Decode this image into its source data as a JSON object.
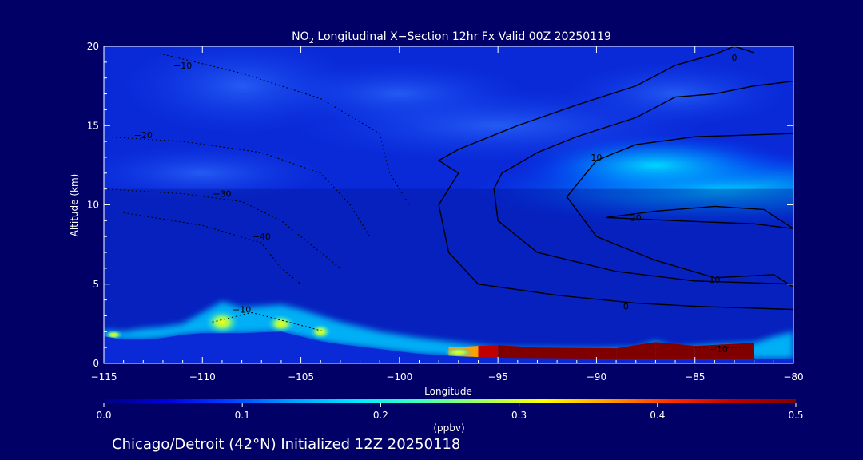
{
  "chart_data": {
    "type": "heatmap",
    "title_prefix": "NO",
    "title_sub": "2",
    "title_suffix": " Longitudinal X−Section 12hr  Fx Valid 00Z 20250119",
    "xlabel": "Longitude",
    "ylabel": "Altitude (km)",
    "xlim": [
      -115,
      -80
    ],
    "ylim": [
      0,
      20
    ],
    "x_ticks": [
      -115,
      -110,
      -105,
      -100,
      -95,
      -90,
      -85,
      -80
    ],
    "x_tick_labels": [
      "−115",
      "−110",
      "−105",
      "−100",
      "−95",
      "−90",
      "−85",
      "−80"
    ],
    "y_ticks": [
      0,
      5,
      10,
      15,
      20
    ],
    "y_tick_labels": [
      "0",
      "5",
      "10",
      "15",
      "20"
    ],
    "colorbar": {
      "min": 0.0,
      "max": 0.5,
      "ticks": [
        0.0,
        0.1,
        0.2,
        0.3,
        0.4,
        0.5
      ],
      "tick_labels": [
        "0.0",
        "0.1",
        "0.2",
        "0.3",
        "0.4",
        "0.5"
      ],
      "label": "(ppbv)",
      "colors": [
        "#000080",
        "#0000dd",
        "#0040ff",
        "#00a0ff",
        "#00e8ff",
        "#40ffc0",
        "#a0ff60",
        "#ffff00",
        "#ffa000",
        "#ff3000",
        "#c00000",
        "#800000"
      ]
    },
    "terrain": [
      [
        -115,
        1.7
      ],
      [
        -114,
        1.5
      ],
      [
        -113,
        1.5
      ],
      [
        -112,
        1.6
      ],
      [
        -111,
        1.8
      ],
      [
        -110,
        1.9
      ],
      [
        -108,
        1.9
      ],
      [
        -106,
        2.0
      ],
      [
        -105,
        1.7
      ],
      [
        -104,
        1.4
      ],
      [
        -103,
        1.2
      ],
      [
        -101,
        0.9
      ],
      [
        -99,
        0.6
      ],
      [
        -97,
        0.45
      ],
      [
        -95,
        0.35
      ],
      [
        -90,
        0.3
      ],
      [
        -85,
        0.3
      ],
      [
        -80,
        0.3
      ]
    ],
    "no2_layer": [
      [
        -115,
        2.1
      ],
      [
        -114,
        2.0
      ],
      [
        -113,
        2.2
      ],
      [
        -112,
        2.3
      ],
      [
        -111,
        2.5
      ],
      [
        -110,
        3.2
      ],
      [
        -109,
        3.9
      ],
      [
        -108,
        3.5
      ],
      [
        -107,
        3.6
      ],
      [
        -106,
        3.7
      ],
      [
        -105,
        3.4
      ],
      [
        -104,
        3.0
      ],
      [
        -103,
        2.6
      ],
      [
        -101,
        2.0
      ],
      [
        -99,
        1.6
      ],
      [
        -97,
        1.3
      ],
      [
        -95,
        1.0
      ],
      [
        -90,
        0.95
      ],
      [
        -88,
        1.0
      ],
      [
        -87,
        1.4
      ],
      [
        -86,
        1.0
      ],
      [
        -84,
        1.2
      ],
      [
        -82,
        1.3
      ],
      [
        -81,
        1.7
      ],
      [
        -80,
        2.0
      ]
    ],
    "no2_core": [
      [
        -97.5,
        0.3,
        1.0,
        0.28
      ],
      [
        -96,
        0.3,
        1.1,
        0.42
      ],
      [
        -95,
        0.3,
        1.15,
        0.5
      ],
      [
        -93,
        0.3,
        1.0,
        0.5
      ],
      [
        -89,
        0.3,
        0.95,
        0.5
      ],
      [
        -87,
        0.3,
        1.35,
        0.5
      ],
      [
        -85,
        0.3,
        1.1,
        0.5
      ],
      [
        -82,
        0.3,
        1.3,
        0.5
      ]
    ],
    "contours": [
      {
        "label": "0",
        "label_pos": [
          -88.5,
          3.6
        ],
        "points": [
          [
            -80,
            3.4
          ],
          [
            -85,
            3.6
          ],
          [
            -88,
            3.8
          ],
          [
            -92,
            4.3
          ],
          [
            -96,
            5.0
          ],
          [
            -97.5,
            7.0
          ],
          [
            -98,
            10.0
          ],
          [
            -97,
            12.0
          ],
          [
            -98,
            12.8
          ],
          [
            -97,
            13.5
          ],
          [
            -94,
            15.0
          ],
          [
            -91,
            16.3
          ],
          [
            -88,
            17.5
          ],
          [
            -86,
            18.8
          ],
          [
            -84,
            19.5
          ],
          [
            -83,
            20.0
          ]
        ],
        "dashed": false
      },
      {
        "label": "0",
        "label_pos": [
          -83,
          19.3
        ],
        "points": [
          [
            -83,
            20.0
          ],
          [
            -82,
            19.6
          ]
        ],
        "dashed": false
      },
      {
        "label": "10",
        "label_pos": [
          -90,
          13.0
        ],
        "points": [
          [
            -80,
            5.0
          ],
          [
            -85,
            5.2
          ],
          [
            -89,
            5.8
          ],
          [
            -93,
            7.0
          ],
          [
            -95,
            9.0
          ],
          [
            -95.2,
            11.0
          ],
          [
            -94.8,
            12.0
          ],
          [
            -93,
            13.3
          ],
          [
            -91,
            14.3
          ],
          [
            -88,
            15.5
          ],
          [
            -86,
            16.8
          ],
          [
            -84,
            17.0
          ],
          [
            -82,
            17.5
          ],
          [
            -80,
            17.8
          ]
        ],
        "dashed": false
      },
      {
        "label": "10",
        "label_pos": [
          -84,
          5.3
        ],
        "points": [
          [
            -80,
            4.8
          ],
          [
            -81,
            5.6
          ],
          [
            -84,
            5.4
          ],
          [
            -87,
            6.5
          ],
          [
            -90,
            8.0
          ],
          [
            -91.5,
            10.5
          ],
          [
            -90,
            12.8
          ],
          [
            -88,
            13.8
          ],
          [
            -85,
            14.3
          ],
          [
            -80,
            14.5
          ]
        ],
        "dashed": false
      },
      {
        "label": "20",
        "label_pos": [
          -88,
          9.2
        ],
        "points": [
          [
            -89.5,
            9.2
          ],
          [
            -86,
            9.0
          ],
          [
            -82,
            8.8
          ],
          [
            -80,
            8.5
          ],
          [
            -81.5,
            9.7
          ],
          [
            -84,
            9.9
          ],
          [
            -87,
            9.6
          ],
          [
            -89.5,
            9.2
          ]
        ],
        "dashed": false
      },
      {
        "label": "−10",
        "label_pos": [
          -111,
          18.8
        ],
        "points": [
          [
            -112,
            19.5
          ],
          [
            -108,
            18.3
          ],
          [
            -104,
            16.7
          ],
          [
            -101,
            14.5
          ],
          [
            -100.5,
            12.0
          ],
          [
            -99.5,
            10.0
          ]
        ],
        "dashed": true
      },
      {
        "label": "−20",
        "label_pos": [
          -113,
          14.4
        ],
        "points": [
          [
            -115,
            14.3
          ],
          [
            -111,
            14.0
          ],
          [
            -107,
            13.3
          ],
          [
            -104,
            12.0
          ],
          [
            -102.5,
            10.0
          ],
          [
            -101.5,
            8.0
          ]
        ],
        "dashed": true
      },
      {
        "label": "−30",
        "label_pos": [
          -109,
          10.7
        ],
        "points": [
          [
            -115,
            11.0
          ],
          [
            -111,
            10.7
          ],
          [
            -108,
            10.2
          ],
          [
            -106,
            9.0
          ],
          [
            -104.5,
            7.5
          ],
          [
            -103,
            6.0
          ]
        ],
        "dashed": true
      },
      {
        "label": "−40",
        "label_pos": [
          -107,
          8.0
        ],
        "points": [
          [
            -114,
            9.5
          ],
          [
            -110,
            8.7
          ],
          [
            -107,
            7.6
          ],
          [
            -106,
            6.0
          ],
          [
            -105,
            5.0
          ]
        ],
        "dashed": true
      },
      {
        "label": "−10",
        "label_pos": [
          -83.8,
          0.9
        ],
        "points": [
          [
            -85,
            1.0
          ],
          [
            -82.5,
            1.0
          ]
        ],
        "dashed": true
      },
      {
        "label": "−10",
        "label_pos": [
          -108,
          3.4
        ],
        "points": [
          [
            -109.5,
            2.6
          ],
          [
            -107.5,
            3.2
          ],
          [
            -105,
            2.4
          ],
          [
            -103.8,
            2.0
          ]
        ],
        "dashed": true
      }
    ]
  },
  "footer": {
    "location_text": "Chicago/Detroit (42°N) Initialized 12Z 20250118"
  }
}
